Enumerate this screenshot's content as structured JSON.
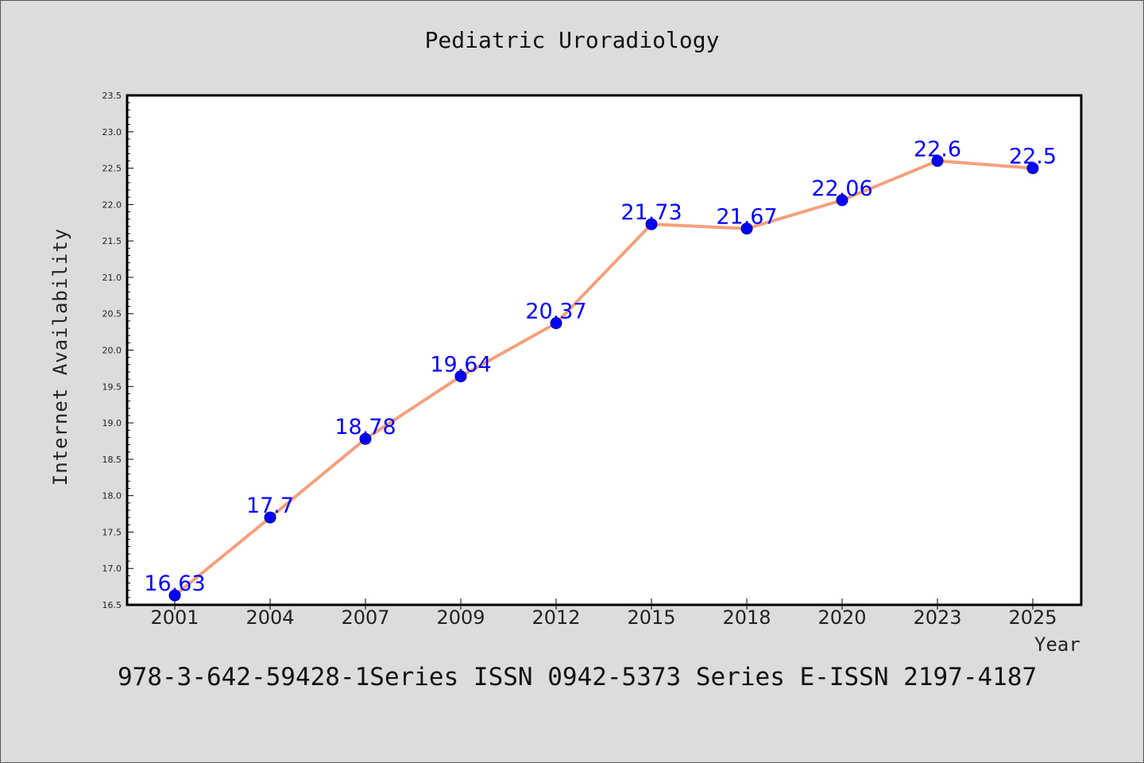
{
  "colors": {
    "background": "#dcdcdc",
    "plot_background": "#ffffff",
    "line": "#f4a07c",
    "marker": "#0000ff",
    "data_label": "#0000ff"
  },
  "chart_data": {
    "type": "line",
    "title": "Pediatric Uroradiology",
    "xlabel": "Year",
    "ylabel": "Internet Availability",
    "categories": [
      "2001",
      "2004",
      "2007",
      "2009",
      "2012",
      "2015",
      "2018",
      "2020",
      "2023",
      "2025"
    ],
    "series": [
      {
        "values": [
          16.63,
          17.7,
          18.78,
          19.64,
          20.37,
          21.73,
          21.67,
          22.06,
          22.6,
          22.5
        ]
      }
    ],
    "data_labels": [
      "16.63",
      "17.7",
      "18.78",
      "19.64",
      "20.37",
      "21.73",
      "21.67",
      "22.06",
      "22.6",
      "22.5"
    ],
    "ylim": [
      16.5,
      23.5
    ],
    "yticks": [
      "16.5",
      "17.0",
      "17.5",
      "18.0",
      "18.5",
      "19.0",
      "19.5",
      "20.0",
      "20.5",
      "21.0",
      "21.5",
      "22.0",
      "22.5",
      "23.0",
      "23.5"
    ],
    "grid": false,
    "legend": "none"
  },
  "footer": "978-3-642-59428-1Series ISSN 0942-5373 Series E-ISSN 2197-4187"
}
